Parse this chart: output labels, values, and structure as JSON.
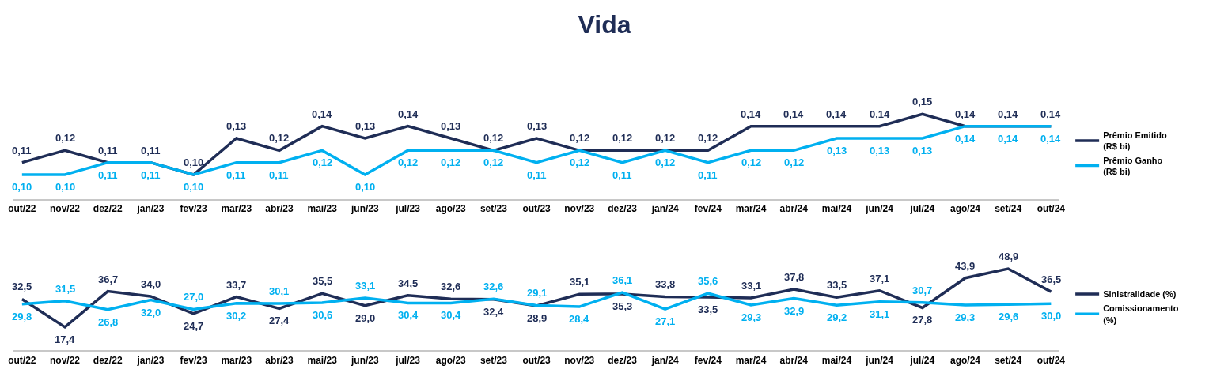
{
  "chart_data": [
    {
      "type": "line",
      "title": "Vida",
      "legend": "right",
      "categories": [
        "out/22",
        "nov/22",
        "dez/22",
        "jan/23",
        "fev/23",
        "mar/23",
        "abr/23",
        "mai/23",
        "jun/23",
        "jul/23",
        "ago/23",
        "set/23",
        "out/23",
        "nov/23",
        "dez/23",
        "jan/24",
        "fev/24",
        "mar/24",
        "abr/24",
        "mai/24",
        "jun/24",
        "jul/24",
        "ago/24",
        "set/24",
        "out/24"
      ],
      "series": [
        {
          "name": "Prêmio Emitido (R$ bi)",
          "color": "#1f2d56",
          "values": [
            0.11,
            0.12,
            0.11,
            0.11,
            0.1,
            0.13,
            0.12,
            0.14,
            0.13,
            0.14,
            0.13,
            0.12,
            0.13,
            0.12,
            0.12,
            0.12,
            0.12,
            0.14,
            0.14,
            0.14,
            0.14,
            0.15,
            0.14,
            0.14,
            0.14
          ],
          "value_labels": [
            "0,11",
            "0,12",
            "0,11",
            "0,11",
            "0,10",
            "0,13",
            "0,12",
            "0,14",
            "0,13",
            "0,14",
            "0,13",
            "0,12",
            "0,13",
            "0,12",
            "0,12",
            "0,12",
            "0,12",
            "0,14",
            "0,14",
            "0,14",
            "0,14",
            "0,15",
            "0,14",
            "0,14",
            "0,14"
          ]
        },
        {
          "name": "Prêmio Ganho (R$ bi)",
          "color": "#00b0f0",
          "values": [
            0.1,
            0.1,
            0.11,
            0.11,
            0.1,
            0.11,
            0.11,
            0.12,
            0.1,
            0.12,
            0.12,
            0.12,
            0.11,
            0.12,
            0.11,
            0.12,
            0.11,
            0.12,
            0.12,
            0.13,
            0.13,
            0.13,
            0.14,
            0.14,
            0.14
          ],
          "value_labels": [
            "0,10",
            "0,10",
            "0,11",
            "0,11",
            "0,10",
            "0,11",
            "0,11",
            "0,12",
            "0,10",
            "0,12",
            "0,12",
            "0,12",
            "0,11",
            "0,12",
            "0,11",
            "0,12",
            "0,11",
            "0,12",
            "0,12",
            "0,13",
            "0,13",
            "0,13",
            "0,14",
            "0,14",
            "0,14"
          ]
        }
      ]
    },
    {
      "type": "line",
      "legend": "right",
      "categories": [
        "out/22",
        "nov/22",
        "dez/22",
        "jan/23",
        "fev/23",
        "mar/23",
        "abr/23",
        "mai/23",
        "jun/23",
        "jul/23",
        "ago/23",
        "set/23",
        "out/23",
        "nov/23",
        "dez/23",
        "jan/24",
        "fev/24",
        "mar/24",
        "abr/24",
        "mai/24",
        "jun/24",
        "jul/24",
        "ago/24",
        "set/24",
        "out/24"
      ],
      "series": [
        {
          "name": "Sinistralidade (%)",
          "color": "#1f2d56",
          "values": [
            32.5,
            17.4,
            36.7,
            34.0,
            24.7,
            33.7,
            27.4,
            35.5,
            29.0,
            34.5,
            32.6,
            32.4,
            28.9,
            35.1,
            35.3,
            33.8,
            33.5,
            33.1,
            37.8,
            33.5,
            37.1,
            27.8,
            43.9,
            48.9,
            36.5
          ],
          "value_labels": [
            "32,5",
            "17,4",
            "36,7",
            "34,0",
            "24,7",
            "33,7",
            "27,4",
            "35,5",
            "29,0",
            "34,5",
            "32,6",
            "32,4",
            "28,9",
            "35,1",
            "35,3",
            "33,8",
            "33,5",
            "33,1",
            "37,8",
            "33,5",
            "37,1",
            "27,8",
            "43,9",
            "48,9",
            "36,5"
          ]
        },
        {
          "name": "Comissionamento (%)",
          "color": "#00b0f0",
          "values": [
            29.8,
            31.5,
            26.8,
            32.0,
            27.0,
            30.2,
            30.1,
            30.6,
            33.1,
            30.4,
            30.4,
            32.6,
            29.1,
            28.4,
            36.1,
            27.1,
            35.6,
            29.3,
            32.9,
            29.2,
            31.1,
            30.7,
            29.3,
            29.6,
            30.0
          ],
          "value_labels": [
            "29,8",
            "31,5",
            "26,8",
            "32,0",
            "27,0",
            "30,2",
            "30,1",
            "30,6",
            "33,1",
            "30,4",
            "30,4",
            "32,6",
            "29,1",
            "28,4",
            "36,1",
            "27,1",
            "35,6",
            "29,3",
            "32,9",
            "29,2",
            "31,1",
            "30,7",
            "29,3",
            "29,6",
            "30,0"
          ]
        }
      ]
    }
  ]
}
